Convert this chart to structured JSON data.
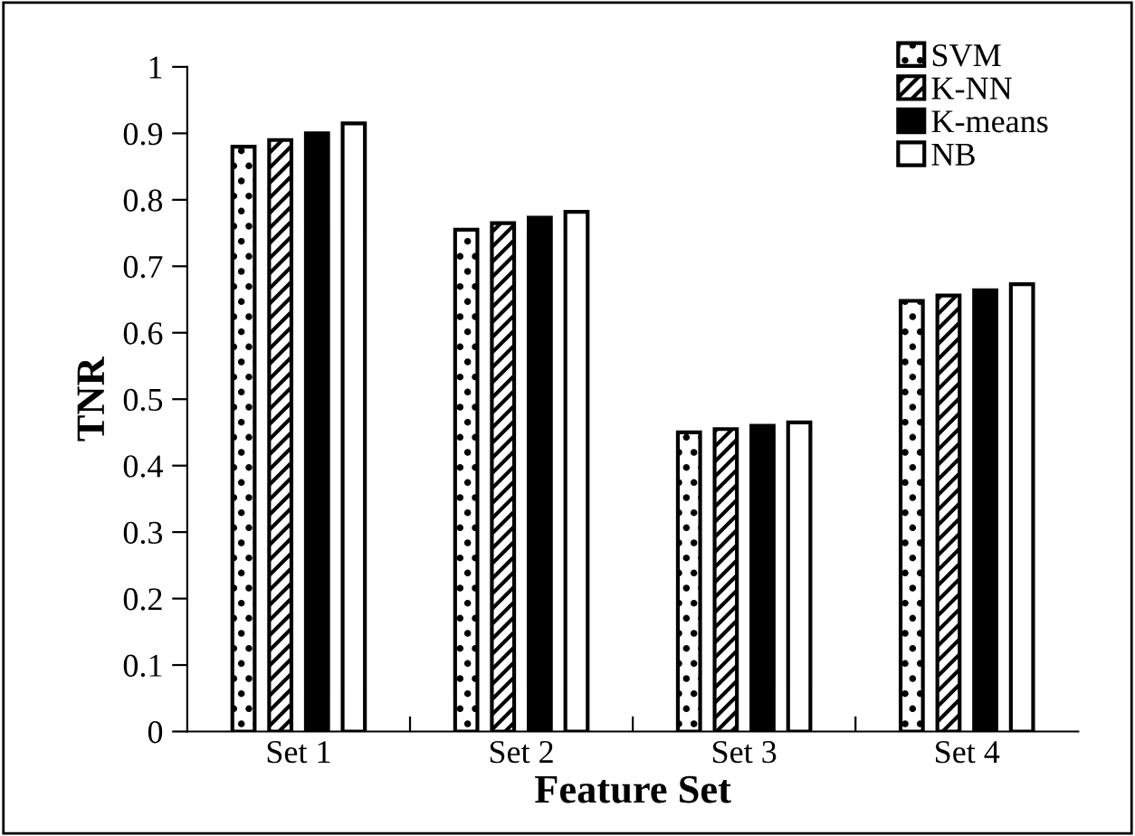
{
  "chart_data": {
    "type": "bar",
    "xlabel": "Feature Set",
    "ylabel": "TNR",
    "categories": [
      "Set 1",
      "Set 2",
      "Set 3",
      "Set 4"
    ],
    "series": [
      {
        "name": "SVM",
        "color": "#000000",
        "values": [
          0.88,
          0.755,
          0.45,
          0.648
        ]
      },
      {
        "name": "K-NN",
        "color": "#000000",
        "values": [
          0.89,
          0.765,
          0.455,
          0.656
        ]
      },
      {
        "name": "K-means",
        "color": "#000000",
        "values": [
          0.9,
          0.773,
          0.46,
          0.664
        ]
      },
      {
        "name": "NB",
        "color": "#ffffff",
        "values": [
          0.915,
          0.782,
          0.465,
          0.673
        ]
      }
    ],
    "ylim": [
      0,
      1
    ],
    "yticks": [
      0,
      0.1,
      0.2,
      0.3,
      0.4,
      0.5,
      0.6,
      0.7,
      0.8,
      0.9,
      1
    ],
    "grid": false,
    "legend": "top right"
  }
}
